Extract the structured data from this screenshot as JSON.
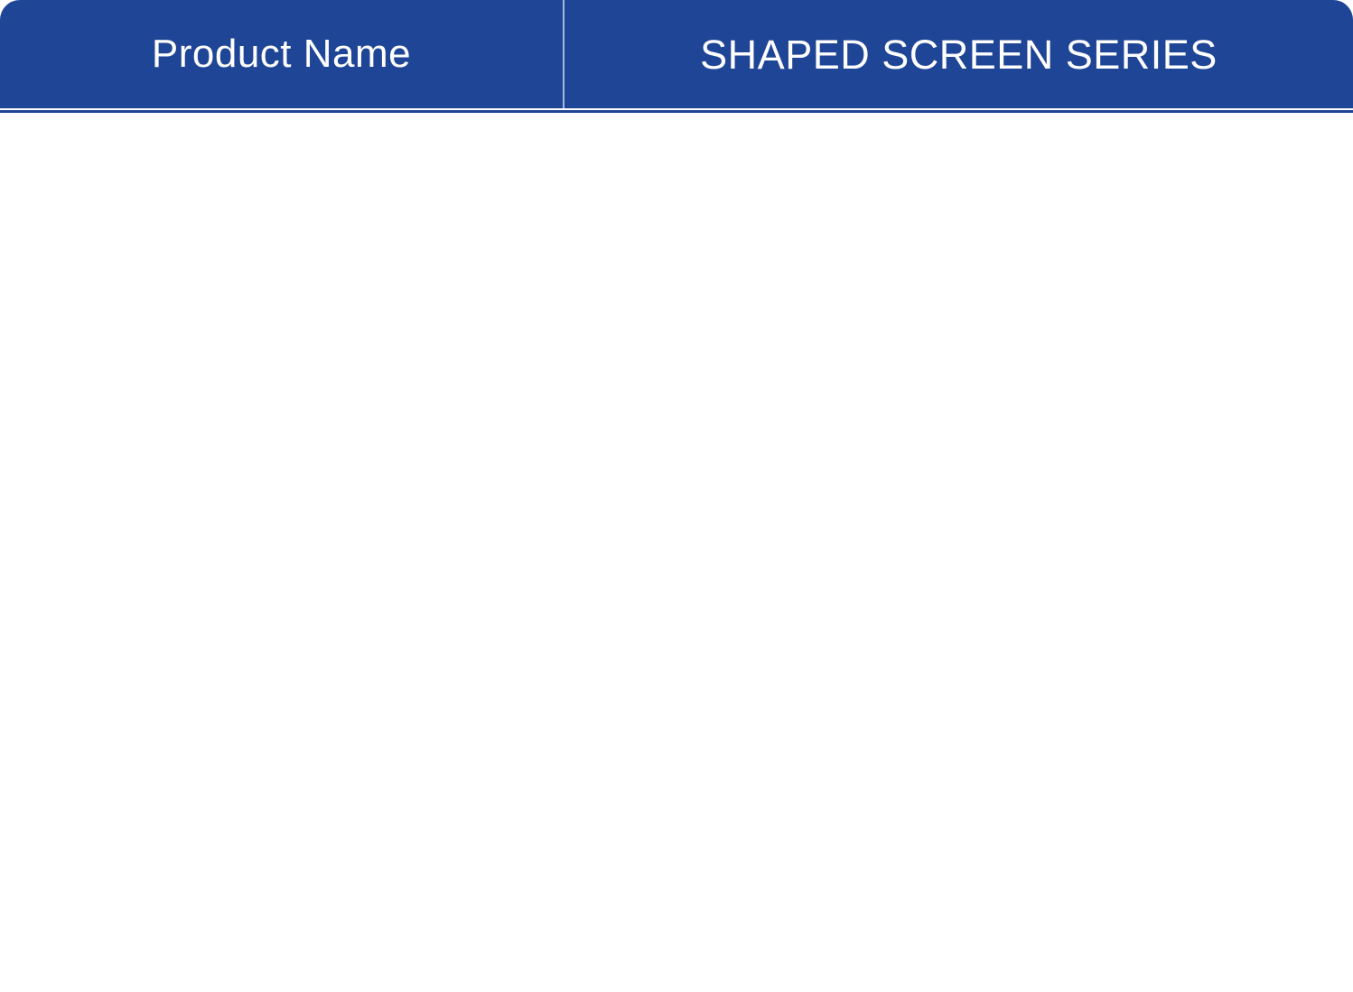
{
  "page": {
    "background_color": "#FFFFFF"
  },
  "header": {
    "background_color": "#1F4596",
    "text_color": "#FFFFFF",
    "divider_color": "#A9B7DB",
    "bottom_rule_color": "#1F4596",
    "left_cell": {
      "label": "Product Name"
    },
    "right_cell": {
      "label": "SHAPED SCREEN SERIES"
    }
  }
}
